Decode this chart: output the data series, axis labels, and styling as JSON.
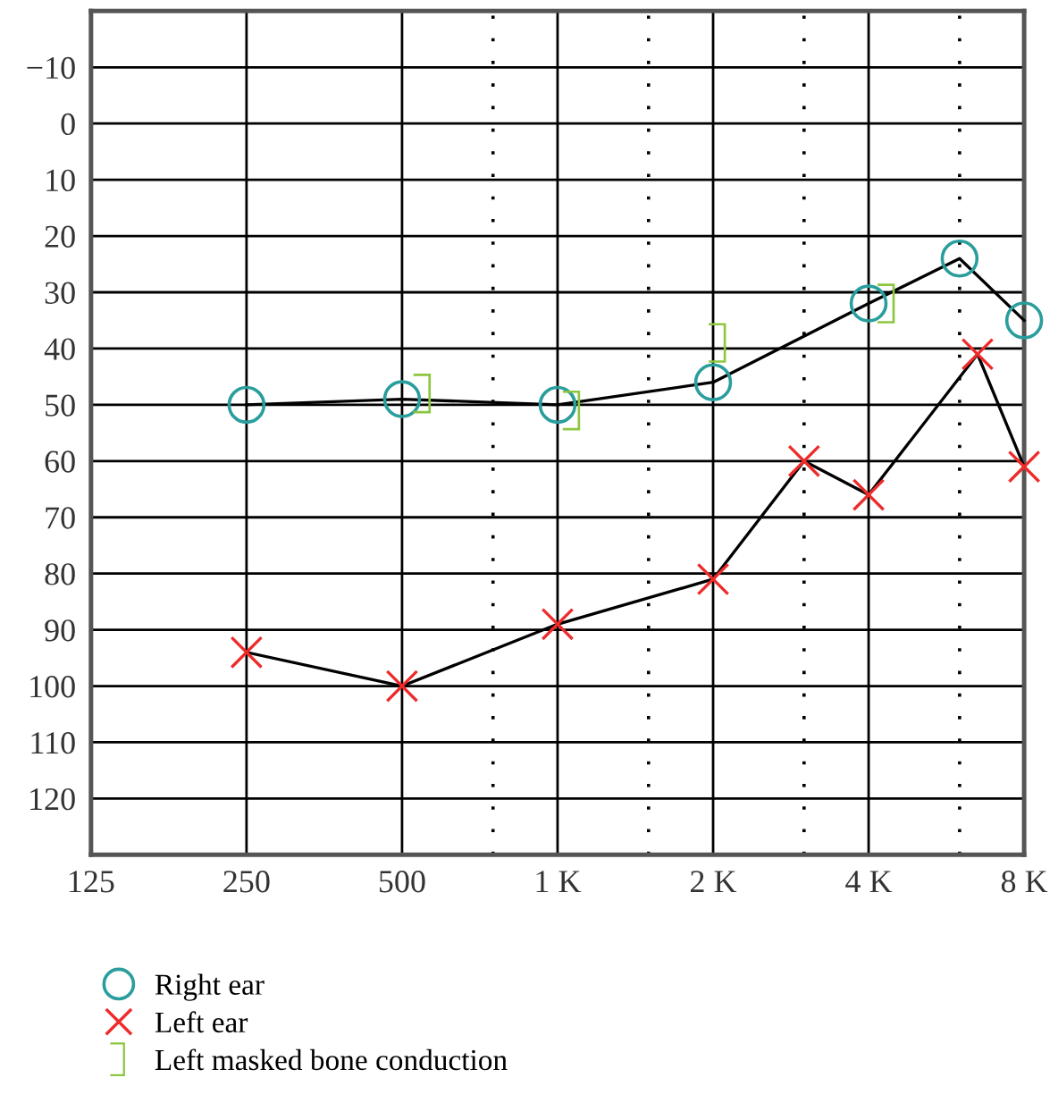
{
  "chart_data": {
    "type": "line",
    "series": [
      {
        "name": "Right ear",
        "color": "#2a9d9d",
        "marker": "circle",
        "line_style": "solid",
        "x": [
          250,
          500,
          1000,
          2000,
          4000,
          6000,
          8000
        ],
        "values": [
          50,
          49,
          50,
          46,
          32,
          24,
          35
        ]
      },
      {
        "name": "Left ear",
        "color": "#ee2b2b",
        "marker": "cross",
        "line_style": "solid",
        "x": [
          250,
          500,
          1000,
          2000,
          3000,
          4000,
          6500,
          8000
        ],
        "values": [
          94,
          100,
          89,
          81,
          60,
          66,
          41,
          61
        ]
      },
      {
        "name": "Left masked bone conduction",
        "type": "scatter",
        "color": "#8cc63f",
        "x": [
          550,
          1070,
          2050,
          4350
        ],
        "values": [
          48,
          51,
          39,
          32
        ]
      }
    ],
    "log": "x",
    "xlim": [
      125,
      8000
    ],
    "xticks": [
      125,
      250,
      500,
      {
        "value": 750,
        "label": null
      },
      {
        "value": 1000,
        "label": "1 K"
      },
      {
        "value": 1500,
        "label": null
      },
      {
        "value": 2000,
        "label": "2 K"
      },
      {
        "value": 3000,
        "label": null
      },
      {
        "value": 4000,
        "label": "4 K"
      },
      {
        "value": 6000,
        "label": null
      },
      {
        "value": 8000,
        "label": "8 K"
      }
    ],
    "ylim": [
      130,
      -20
    ],
    "yticks": [
      -10,
      0,
      10,
      20,
      30,
      40,
      50,
      60,
      70,
      80,
      90,
      100,
      110,
      120
    ],
    "grid": true,
    "legend": "bottom left"
  }
}
